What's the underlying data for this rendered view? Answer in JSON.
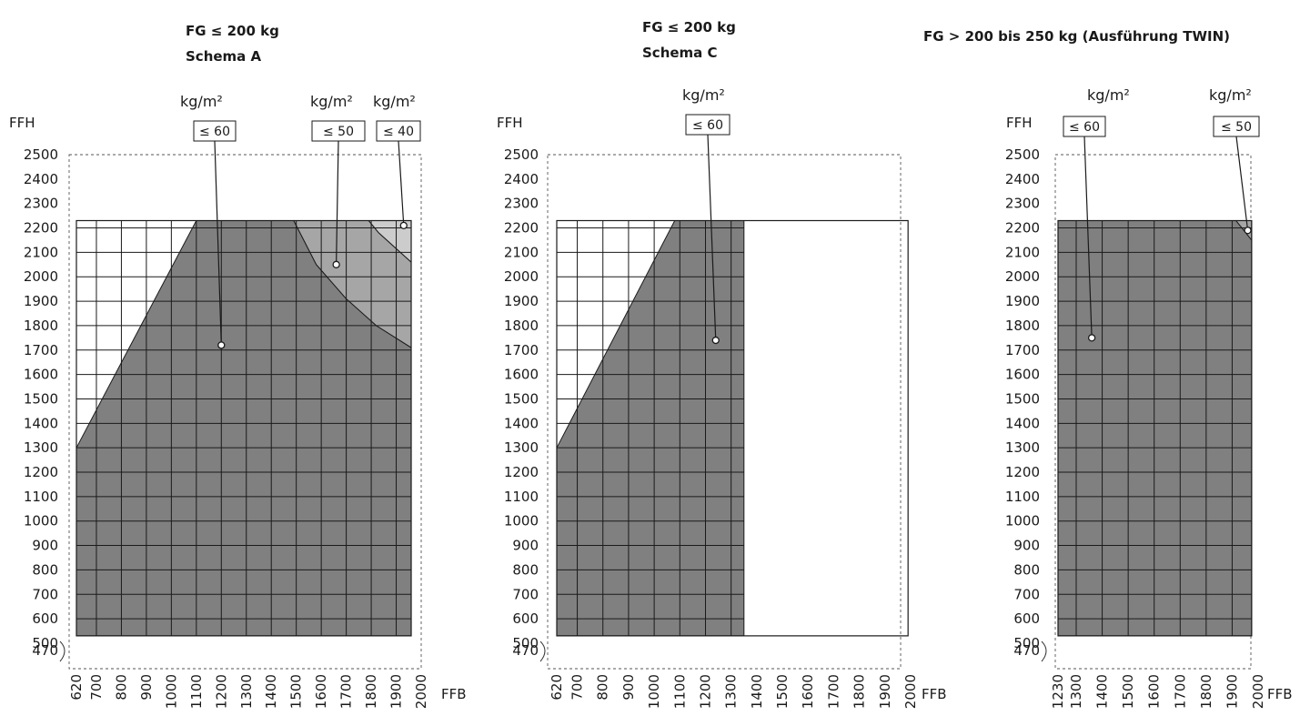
{
  "chart_data": [
    {
      "type": "area",
      "title": "FG ≤ 200 kg",
      "subtitle": "Schema A",
      "ylabel": "FFH",
      "xlabel": "FFB",
      "xlim": [
        620,
        2000
      ],
      "ylim": [
        470,
        2500
      ],
      "xticks": [
        "620",
        "700",
        "800",
        "900",
        "1000",
        "1100",
        "1200",
        "1300",
        "1400",
        "1500",
        "1600",
        "1700",
        "1800",
        "1900",
        "2000"
      ],
      "xtick_values": [
        620,
        700,
        800,
        900,
        1000,
        1100,
        1200,
        1300,
        1400,
        1500,
        1600,
        1700,
        1800,
        1900,
        2000
      ],
      "yticks": [
        "470",
        "500",
        "600",
        "700",
        "800",
        "900",
        "1000",
        "1100",
        "1200",
        "1300",
        "1400",
        "1500",
        "1600",
        "1700",
        "1800",
        "1900",
        "2000",
        "2100",
        "2200",
        "2300",
        "2400",
        "2500"
      ],
      "ytick_values": [
        470,
        500,
        600,
        700,
        800,
        900,
        1000,
        1100,
        1200,
        1300,
        1400,
        1500,
        1600,
        1700,
        1800,
        1900,
        2000,
        2100,
        2200,
        2300,
        2400,
        2500
      ],
      "frame": {
        "x": [
          620,
          1960
        ],
        "y": [
          530,
          2230
        ]
      },
      "grid_x": [
        700,
        800,
        900,
        1000,
        1100,
        1200,
        1300,
        1400,
        1500,
        1600,
        1700,
        1800,
        1900
      ],
      "grid_y": [
        600,
        700,
        800,
        900,
        1000,
        1100,
        1200,
        1300,
        1400,
        1500,
        1600,
        1700,
        1800,
        1900,
        2000,
        2100,
        2200
      ],
      "series": [
        {
          "label": "≤ 60",
          "unit": "kg/m²",
          "color": "#808080",
          "polygon": [
            [
              620,
              530
            ],
            [
              620,
              1300
            ],
            [
              1100,
              2230
            ],
            [
              1490,
              2230
            ],
            [
              1580,
              2050
            ],
            [
              1700,
              1910
            ],
            [
              1820,
              1800
            ],
            [
              1960,
              1710
            ],
            [
              1960,
              530
            ]
          ],
          "marker": [
            1200,
            1720
          ]
        },
        {
          "label": "≤ 50",
          "unit": "kg/m²",
          "color": "#a6a6a6",
          "polygon": [
            [
              1490,
              2230
            ],
            [
              1790,
              2230
            ],
            [
              1830,
              2180
            ],
            [
              1960,
              2060
            ],
            [
              1960,
              1710
            ],
            [
              1820,
              1800
            ],
            [
              1700,
              1910
            ],
            [
              1580,
              2050
            ]
          ],
          "marker": [
            1660,
            2050
          ]
        },
        {
          "label": "≤ 40",
          "unit": "kg/m²",
          "color": "#cccccc",
          "polygon": [
            [
              1790,
              2230
            ],
            [
              1960,
              2230
            ],
            [
              1960,
              2060
            ],
            [
              1830,
              2180
            ]
          ],
          "marker": [
            1930,
            2210
          ]
        }
      ]
    },
    {
      "type": "area",
      "title": "FG ≤ 200 kg",
      "subtitle": "Schema C",
      "ylabel": "FFH",
      "xlabel": "FFB",
      "xlim": [
        620,
        2000
      ],
      "ylim": [
        470,
        2500
      ],
      "xticks": [
        "620",
        "700",
        "800",
        "900",
        "1000",
        "1100",
        "1200",
        "1300",
        "1400",
        "1500",
        "1600",
        "1700",
        "1800",
        "1900",
        "2000"
      ],
      "xtick_values": [
        620,
        700,
        800,
        900,
        1000,
        1100,
        1200,
        1300,
        1400,
        1500,
        1600,
        1700,
        1800,
        1900,
        2000
      ],
      "yticks": [
        "470",
        "500",
        "600",
        "700",
        "800",
        "900",
        "1000",
        "1100",
        "1200",
        "1300",
        "1400",
        "1500",
        "1600",
        "1700",
        "1800",
        "1900",
        "2000",
        "2100",
        "2200",
        "2300",
        "2400",
        "2500"
      ],
      "ytick_values": [
        470,
        500,
        600,
        700,
        800,
        900,
        1000,
        1100,
        1200,
        1300,
        1400,
        1500,
        1600,
        1700,
        1800,
        1900,
        2000,
        2100,
        2200,
        2300,
        2400,
        2500
      ],
      "frame": {
        "x": [
          620,
          1990
        ],
        "y": [
          530,
          2230
        ]
      },
      "grid_x": [
        700,
        800,
        900,
        1000,
        1100,
        1200,
        1300
      ],
      "grid_x_max": 1350,
      "grid_y": [
        600,
        700,
        800,
        900,
        1000,
        1100,
        1200,
        1300,
        1400,
        1500,
        1600,
        1700,
        1800,
        1900,
        2000,
        2100,
        2200
      ],
      "series": [
        {
          "label": "≤ 60",
          "unit": "kg/m²",
          "color": "#808080",
          "polygon": [
            [
              620,
              530
            ],
            [
              620,
              1300
            ],
            [
              1080,
              2230
            ],
            [
              1350,
              2230
            ],
            [
              1350,
              530
            ]
          ],
          "marker": [
            1240,
            1740
          ]
        }
      ]
    },
    {
      "type": "area",
      "title": "FG > 200 bis 250 kg (Ausführung TWIN)",
      "ylabel": "FFH",
      "xlabel": "FFB",
      "xlim": [
        1230,
        2000
      ],
      "ylim": [
        470,
        2500
      ],
      "xticks": [
        "1230",
        "1300",
        "1400",
        "1500",
        "1600",
        "1700",
        "1800",
        "1900",
        "2000"
      ],
      "xtick_values": [
        1230,
        1300,
        1400,
        1500,
        1600,
        1700,
        1800,
        1900,
        2000
      ],
      "yticks": [
        "470",
        "500",
        "600",
        "700",
        "800",
        "900",
        "1000",
        "1100",
        "1200",
        "1300",
        "1400",
        "1500",
        "1600",
        "1700",
        "1800",
        "1900",
        "2000",
        "2100",
        "2200",
        "2300",
        "2400",
        "2500"
      ],
      "ytick_values": [
        470,
        500,
        600,
        700,
        800,
        900,
        1000,
        1100,
        1200,
        1300,
        1400,
        1500,
        1600,
        1700,
        1800,
        1900,
        2000,
        2100,
        2200,
        2300,
        2400,
        2500
      ],
      "frame": {
        "x": [
          1230,
          1975
        ],
        "y": [
          530,
          2230
        ]
      },
      "grid_x": [
        1300,
        1400,
        1500,
        1600,
        1700,
        1800,
        1900
      ],
      "grid_y": [
        600,
        700,
        800,
        900,
        1000,
        1100,
        1200,
        1300,
        1400,
        1500,
        1600,
        1700,
        1800,
        1900,
        2000,
        2100,
        2200
      ],
      "series": [
        {
          "label": "≤ 60",
          "unit": "kg/m²",
          "color": "#808080",
          "polygon": [
            [
              1230,
              530
            ],
            [
              1230,
              2230
            ],
            [
              1915,
              2230
            ],
            [
              1975,
              2150
            ],
            [
              1975,
              530
            ]
          ],
          "marker": [
            1360,
            1750
          ]
        },
        {
          "label": "≤ 50",
          "unit": "kg/m²",
          "color": "#a6a6a6",
          "polygon": [
            [
              1915,
              2230
            ],
            [
              1975,
              2230
            ],
            [
              1975,
              2150
            ]
          ],
          "marker": [
            1960,
            2190
          ]
        }
      ]
    }
  ]
}
